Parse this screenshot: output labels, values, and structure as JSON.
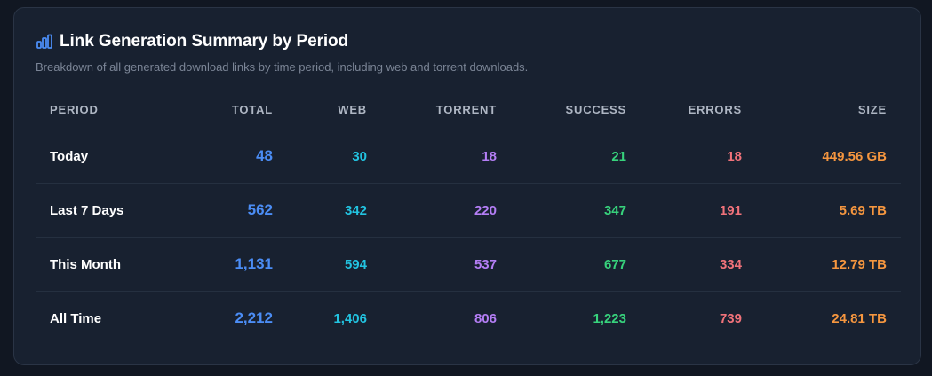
{
  "header": {
    "title": "Link Generation Summary by Period",
    "subtitle": "Breakdown of all generated download links by time period, including web and torrent downloads.",
    "icon": "bar-chart-icon",
    "icon_color": "#4b8df5"
  },
  "table": {
    "columns": {
      "period": "PERIOD",
      "total": "TOTAL",
      "web": "WEB",
      "torrent": "TORRENT",
      "success": "SUCCESS",
      "errors": "ERRORS",
      "size": "SIZE"
    },
    "rows": [
      {
        "period": "Today",
        "total": "48",
        "web": "30",
        "torrent": "18",
        "success": "21",
        "errors": "18",
        "size": "449.56 GB"
      },
      {
        "period": "Last 7 Days",
        "total": "562",
        "web": "342",
        "torrent": "220",
        "success": "347",
        "errors": "191",
        "size": "5.69 TB"
      },
      {
        "period": "This Month",
        "total": "1,131",
        "web": "594",
        "torrent": "537",
        "success": "677",
        "errors": "334",
        "size": "12.79 TB"
      },
      {
        "period": "All Time",
        "total": "2,212",
        "web": "1,406",
        "torrent": "806",
        "success": "1,223",
        "errors": "739",
        "size": "24.81 TB"
      }
    ]
  },
  "colors": {
    "total": "#4b8df5",
    "web": "#22c3e0",
    "torrent": "#b47ef5",
    "success": "#37d27c",
    "errors": "#f0727a",
    "size": "#f5963f"
  }
}
